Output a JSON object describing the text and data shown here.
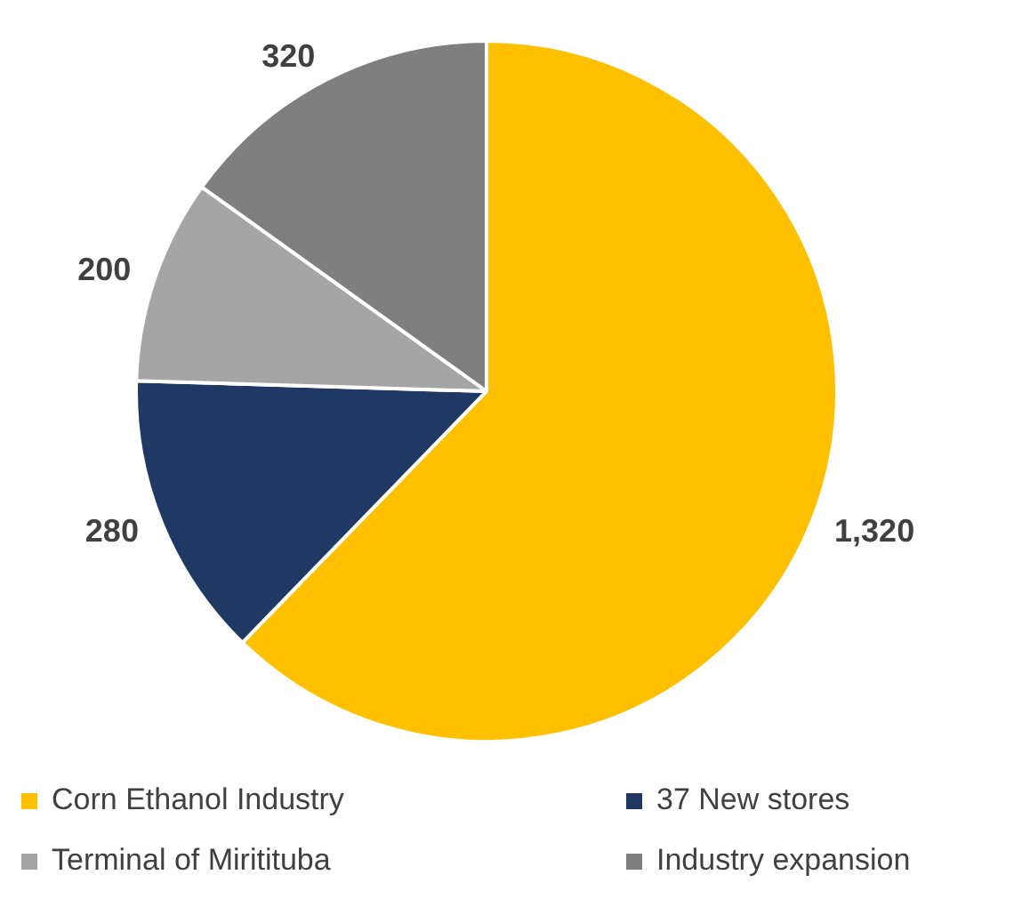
{
  "chart_data": {
    "type": "pie",
    "categories": [
      "Corn Ethanol Industry",
      "37 New stores",
      "Terminal of Miritituba",
      "Industry expansion"
    ],
    "values": [
      1320,
      280,
      200,
      320
    ],
    "colors": [
      "#ffc000",
      "#1f3864",
      "#a5a5a5",
      "#7f7f7f"
    ],
    "value_labels": [
      "1,320",
      "280",
      "200",
      "320"
    ],
    "legend": "bottom"
  }
}
